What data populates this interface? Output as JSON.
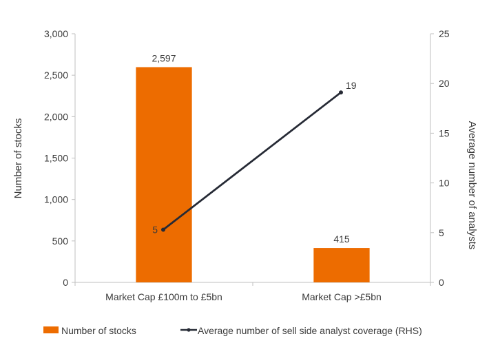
{
  "chart_data": {
    "type": "bar",
    "categories": [
      "Market Cap £100m to £5bn",
      "Market Cap >£5bn"
    ],
    "series": [
      {
        "name": "Number of stocks",
        "type": "bar",
        "axis": "left",
        "values": [
          2597,
          415
        ],
        "value_labels": [
          "2,597",
          "415"
        ],
        "color": "#ED6C00"
      },
      {
        "name": "Average number of sell side analyst coverage (RHS)",
        "type": "line",
        "axis": "right",
        "values": [
          5.3,
          19.1
        ],
        "value_labels": [
          "5",
          "19"
        ],
        "color": "#262A35"
      }
    ],
    "ylabel": "Number of stocks",
    "y2label": "Average number of analysts",
    "ylim": [
      0,
      3000
    ],
    "y2lim": [
      0,
      25
    ],
    "yticks": [
      0,
      500,
      1000,
      1500,
      2000,
      2500,
      3000
    ],
    "yticklabels": [
      "0",
      "500",
      "1,000",
      "1,500",
      "2,000",
      "2,500",
      "3,000"
    ],
    "y2ticks": [
      0,
      5,
      10,
      15,
      20,
      25
    ],
    "y2ticklabels": [
      "0",
      "5",
      "10",
      "15",
      "20",
      "25"
    ],
    "grid": false,
    "legend_position": "bottom",
    "colors": {
      "axis": "#BFBFBF",
      "text": "#3A3A3A"
    }
  }
}
